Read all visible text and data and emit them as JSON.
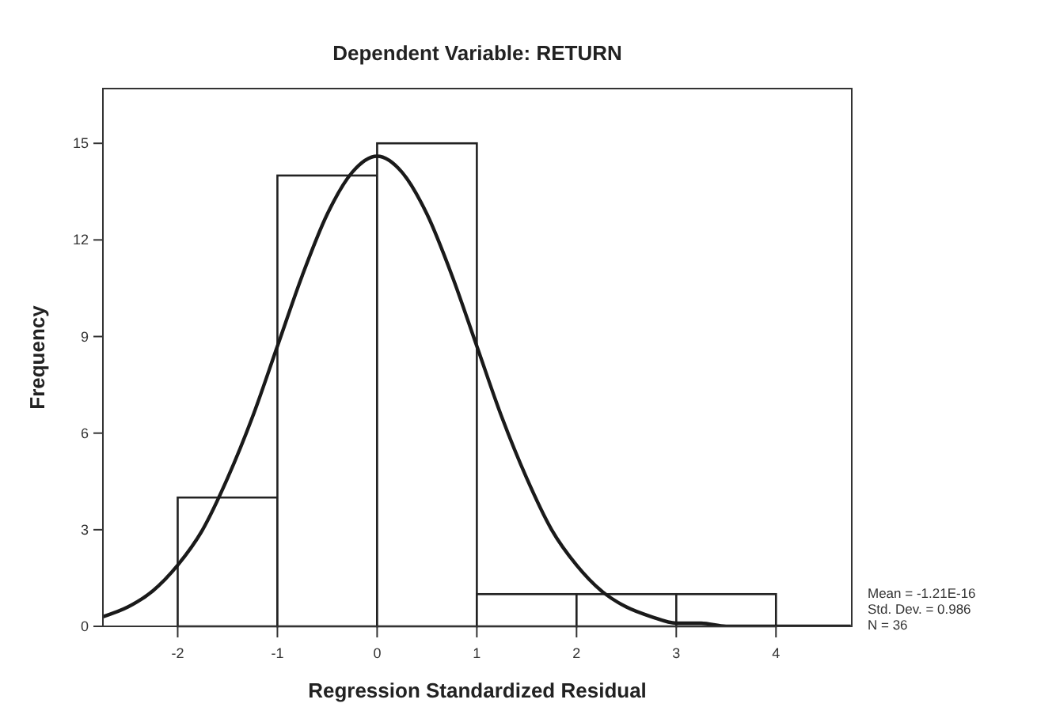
{
  "chart_data": {
    "type": "histogram",
    "title": "Dependent Variable: RETURN",
    "xlabel": "Regression Standardized Residual",
    "ylabel": "Frequency",
    "bins": [
      -2,
      -1,
      0,
      1,
      2,
      3,
      4
    ],
    "values": [
      4,
      14,
      15,
      1,
      1,
      1
    ],
    "color": "#ffffff",
    "series": [
      {
        "type": "line",
        "color": "#1a1a1a",
        "x": [
          -2.75,
          -2.5,
          -2.25,
          -2,
          -1.75,
          -1.5,
          -1.25,
          -1,
          -0.75,
          -0.5,
          -0.25,
          0,
          0.25,
          0.5,
          0.75,
          1,
          1.25,
          1.5,
          1.75,
          2,
          2.25,
          2.5,
          2.75,
          3,
          3.25,
          3.5,
          3.75,
          4,
          4.25,
          4.5,
          4.75
        ],
        "values": [
          0.3,
          0.6,
          1.1,
          1.9,
          3,
          4.6,
          6.5,
          8.7,
          10.9,
          12.8,
          14.1,
          14.6,
          14.1,
          12.8,
          10.9,
          8.7,
          6.5,
          4.6,
          3,
          1.9,
          1.1,
          0.6,
          0.3,
          0.1,
          0.1,
          0,
          0,
          0,
          0,
          0,
          0
        ]
      }
    ],
    "xlim": [
      -2.75,
      4.76
    ],
    "ylim": [
      0,
      16.7
    ],
    "xticks": [
      -2,
      -1,
      0,
      1,
      2,
      3,
      4
    ],
    "yticks": [
      0,
      3,
      6,
      9,
      12,
      15
    ],
    "annotations": [
      "Mean = -1.21E-16",
      "Std. Dev. = 0.986",
      "N = 36"
    ]
  }
}
